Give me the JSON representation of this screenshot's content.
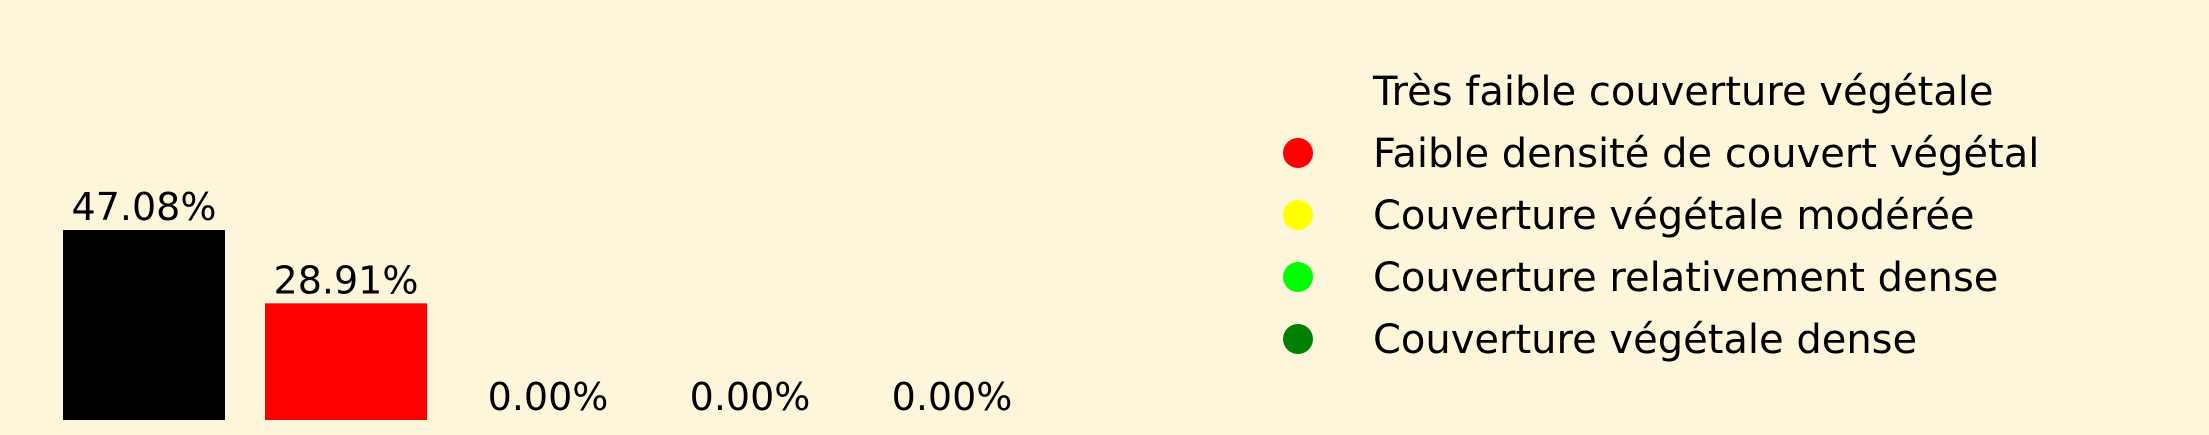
{
  "chart_data": {
    "type": "bar",
    "categories": [
      "Très faible couverture végétale",
      "Faible densité de couvert végétal",
      "Couverture végétale modérée",
      "Couverture relativement dense",
      "Couverture végétale dense"
    ],
    "values": [
      47.08,
      28.91,
      0.0,
      0.0,
      0.0
    ],
    "data_labels": [
      "47.08%",
      "28.91%",
      "0.00%",
      "0.00%",
      "0.00%"
    ],
    "colors": [
      "#000000",
      "#ff0000",
      "#ffff00",
      "#00ff00",
      "#008000"
    ],
    "ylim": [
      0,
      47.08
    ],
    "grid": false,
    "legend_position": "right",
    "legend": [
      {
        "label": "Très faible couverture végétale",
        "color": "#000000"
      },
      {
        "label": "Faible densité de couvert végétal",
        "color": "#ff0000"
      },
      {
        "label": "Couverture végétale modérée",
        "color": "#ffff00"
      },
      {
        "label": "Couverture relativement dense",
        "color": "#00ff00"
      },
      {
        "label": "Couverture végétale dense",
        "color": "#008000"
      }
    ]
  }
}
